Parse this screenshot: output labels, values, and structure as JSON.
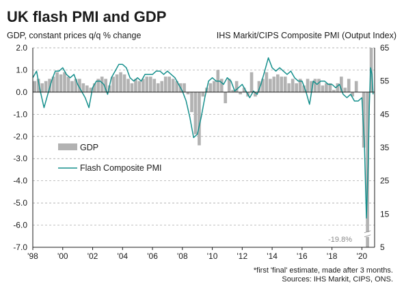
{
  "chart_data": {
    "type": "bar+line",
    "title": "UK flash PMI and GDP",
    "left_axis_label": "GDP, constant prices q/q % change",
    "right_axis_label": "IHS Markit/CIPS Composite PMI (Output Index)",
    "left_ylim": [
      -7.0,
      2.0
    ],
    "left_ticks": [
      "2.0",
      "1.0",
      "0.0",
      "-1.0",
      "-2.0",
      "-3.0",
      "-4.0",
      "-5.0",
      "-6.0",
      "-7.0"
    ],
    "right_ylim": [
      5,
      65
    ],
    "right_ticks": [
      "65",
      "55",
      "45",
      "35",
      "25",
      "15",
      "5"
    ],
    "x_ticks": [
      "'98",
      "'00",
      "'02",
      "'04",
      "'06",
      "'08",
      "'10",
      "'12",
      "'14",
      "'16",
      "'18",
      "'20"
    ],
    "grid": "horizontal dashed",
    "legend_position": "left-middle",
    "colors": {
      "gdp": "#b2b2b2",
      "pmi": "#148f8c",
      "grid": "#9a9a9a"
    },
    "series": [
      {
        "name": "GDP",
        "kind": "bar",
        "axis": "left",
        "x": [
          1998.0,
          1998.25,
          1998.5,
          1998.75,
          1999.0,
          1999.25,
          1999.5,
          1999.75,
          2000.0,
          2000.25,
          2000.5,
          2000.75,
          2001.0,
          2001.25,
          2001.5,
          2001.75,
          2002.0,
          2002.25,
          2002.5,
          2002.75,
          2003.0,
          2003.25,
          2003.5,
          2003.75,
          2004.0,
          2004.25,
          2004.5,
          2004.75,
          2005.0,
          2005.25,
          2005.5,
          2005.75,
          2006.0,
          2006.25,
          2006.5,
          2006.75,
          2007.0,
          2007.25,
          2007.5,
          2007.75,
          2008.0,
          2008.25,
          2008.5,
          2008.75,
          2009.0,
          2009.25,
          2009.5,
          2009.75,
          2010.0,
          2010.25,
          2010.5,
          2010.75,
          2011.0,
          2011.25,
          2011.5,
          2011.75,
          2012.0,
          2012.25,
          2012.5,
          2012.75,
          2013.0,
          2013.25,
          2013.5,
          2013.75,
          2014.0,
          2014.25,
          2014.5,
          2014.75,
          2015.0,
          2015.25,
          2015.5,
          2015.75,
          2016.0,
          2016.25,
          2016.5,
          2016.75,
          2017.0,
          2017.25,
          2017.5,
          2017.75,
          2018.0,
          2018.25,
          2018.5,
          2018.75,
          2019.0,
          2019.25,
          2019.5,
          2019.75,
          2020.0,
          2020.25,
          2020.5
        ],
        "values": [
          0.5,
          0.6,
          0.4,
          0.5,
          0.6,
          0.7,
          0.9,
          0.8,
          0.9,
          0.7,
          0.5,
          0.6,
          0.6,
          0.4,
          0.3,
          0.2,
          0.4,
          0.6,
          0.7,
          0.6,
          0.3,
          0.7,
          0.8,
          0.9,
          0.8,
          0.6,
          0.4,
          0.6,
          0.5,
          0.6,
          0.7,
          0.7,
          0.6,
          0.4,
          0.5,
          0.7,
          0.7,
          0.6,
          0.5,
          0.4,
          0.4,
          -0.1,
          -0.9,
          -1.9,
          -2.4,
          -0.2,
          0.2,
          0.4,
          0.5,
          1.0,
          0.6,
          -0.5,
          0.6,
          0.1,
          0.5,
          -0.1,
          0.2,
          -0.2,
          0.9,
          -0.2,
          0.5,
          0.6,
          0.9,
          0.6,
          0.7,
          0.8,
          0.7,
          0.7,
          0.4,
          0.6,
          0.4,
          0.6,
          0.3,
          0.6,
          0.5,
          0.6,
          0.6,
          0.3,
          0.4,
          0.4,
          0.1,
          0.4,
          0.7,
          0.2,
          0.6,
          -0.2,
          0.5,
          0.0,
          -2.5,
          -19.8,
          15.5
        ],
        "annotation": "-19.8%"
      },
      {
        "name": "Flash Composite PMI",
        "kind": "line",
        "axis": "right",
        "x": [
          1998.0,
          1998.25,
          1998.5,
          1998.75,
          1999.0,
          1999.25,
          1999.5,
          1999.75,
          2000.0,
          2000.25,
          2000.5,
          2000.75,
          2001.0,
          2001.25,
          2001.5,
          2001.75,
          2002.0,
          2002.25,
          2002.5,
          2002.75,
          2003.0,
          2003.25,
          2003.5,
          2003.75,
          2004.0,
          2004.25,
          2004.5,
          2004.75,
          2005.0,
          2005.25,
          2005.5,
          2005.75,
          2006.0,
          2006.25,
          2006.5,
          2006.75,
          2007.0,
          2007.25,
          2007.5,
          2007.75,
          2008.0,
          2008.25,
          2008.5,
          2008.75,
          2009.0,
          2009.25,
          2009.5,
          2009.75,
          2010.0,
          2010.25,
          2010.5,
          2010.75,
          2011.0,
          2011.25,
          2011.5,
          2011.75,
          2012.0,
          2012.25,
          2012.5,
          2012.75,
          2013.0,
          2013.25,
          2013.5,
          2013.75,
          2014.0,
          2014.25,
          2014.5,
          2014.75,
          2015.0,
          2015.25,
          2015.5,
          2015.75,
          2016.0,
          2016.25,
          2016.5,
          2016.75,
          2017.0,
          2017.25,
          2017.5,
          2017.75,
          2018.0,
          2018.25,
          2018.5,
          2018.75,
          2019.0,
          2019.25,
          2019.5,
          2019.75,
          2020.0,
          2020.17,
          2020.3,
          2020.42,
          2020.5,
          2020.58,
          2020.67,
          2020.75
        ],
        "values": [
          56,
          58,
          52,
          47,
          51,
          55,
          58,
          58,
          59,
          57,
          56,
          57,
          54,
          52,
          50,
          47,
          53,
          55,
          55,
          54,
          51,
          56,
          58,
          60,
          60,
          59,
          56,
          55,
          56,
          55,
          57,
          57,
          57,
          58,
          58,
          57,
          58,
          57,
          56,
          54,
          52,
          49,
          44,
          38,
          39,
          44,
          50,
          55,
          56,
          55,
          55,
          54,
          56,
          55,
          52,
          53,
          54,
          52,
          50,
          52,
          51,
          54,
          58,
          62,
          59,
          58,
          59,
          58,
          57,
          58,
          56,
          55,
          55,
          52,
          48,
          55,
          54,
          55,
          55,
          54,
          54,
          53,
          54,
          51,
          50,
          51,
          49,
          49,
          50,
          36,
          13.8,
          30,
          47.7,
          59,
          57,
          51
        ]
      }
    ],
    "footnote": "*first 'final' estimate, made after 3 months.",
    "source": "Sources: IHS Markit, CIPS, ONS."
  }
}
